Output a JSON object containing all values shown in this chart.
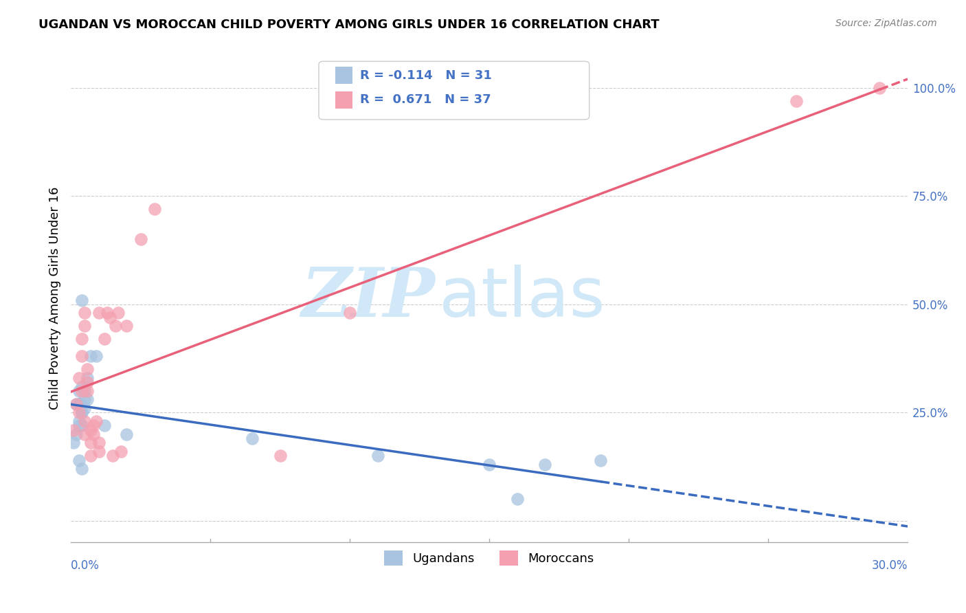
{
  "title": "UGANDAN VS MOROCCAN CHILD POVERTY AMONG GIRLS UNDER 16 CORRELATION CHART",
  "source": "Source: ZipAtlas.com",
  "ylabel": "Child Poverty Among Girls Under 16",
  "ytick_positions": [
    0.0,
    0.25,
    0.5,
    0.75,
    1.0
  ],
  "ytick_labels": [
    "",
    "25.0%",
    "50.0%",
    "75.0%",
    "100.0%"
  ],
  "legend_label1": "Ugandans",
  "legend_label2": "Moroccans",
  "R_ugandan": -0.114,
  "N_ugandan": 31,
  "R_moroccan": 0.671,
  "N_moroccan": 37,
  "ugandan_color": "#a8c4e0",
  "moroccan_color": "#f4a0b0",
  "ugandan_line_color": "#3a6bbf",
  "moroccan_line_color": "#e8607a",
  "watermark_zip": "ZIP",
  "watermark_atlas": "atlas",
  "watermark_color": "#d0e8f8",
  "ugandan_x": [
    0.001,
    0.003,
    0.002,
    0.003,
    0.004,
    0.003,
    0.004,
    0.005,
    0.004,
    0.002,
    0.004,
    0.003,
    0.005,
    0.005,
    0.006,
    0.003,
    0.007,
    0.003,
    0.004,
    0.009,
    0.006,
    0.003,
    0.004,
    0.012,
    0.02,
    0.065,
    0.11,
    0.15,
    0.16,
    0.17,
    0.19
  ],
  "ugandan_y": [
    0.18,
    0.22,
    0.2,
    0.27,
    0.25,
    0.23,
    0.31,
    0.26,
    0.25,
    0.27,
    0.22,
    0.3,
    0.3,
    0.28,
    0.33,
    0.27,
    0.38,
    0.27,
    0.51,
    0.38,
    0.28,
    0.14,
    0.12,
    0.22,
    0.2,
    0.19,
    0.15,
    0.13,
    0.05,
    0.13,
    0.14
  ],
  "moroccan_x": [
    0.001,
    0.002,
    0.003,
    0.003,
    0.004,
    0.004,
    0.004,
    0.005,
    0.005,
    0.005,
    0.005,
    0.006,
    0.006,
    0.006,
    0.007,
    0.007,
    0.007,
    0.008,
    0.008,
    0.009,
    0.01,
    0.01,
    0.01,
    0.012,
    0.013,
    0.014,
    0.015,
    0.016,
    0.017,
    0.018,
    0.02,
    0.025,
    0.03,
    0.075,
    0.1,
    0.26,
    0.29
  ],
  "moroccan_y": [
    0.21,
    0.27,
    0.25,
    0.33,
    0.3,
    0.38,
    0.42,
    0.2,
    0.23,
    0.45,
    0.48,
    0.3,
    0.35,
    0.32,
    0.15,
    0.18,
    0.21,
    0.2,
    0.22,
    0.23,
    0.16,
    0.18,
    0.48,
    0.42,
    0.48,
    0.47,
    0.15,
    0.45,
    0.48,
    0.16,
    0.45,
    0.65,
    0.72,
    0.15,
    0.48,
    0.97,
    1.0
  ],
  "xmin": 0.0,
  "xmax": 0.3,
  "ymin": -0.05,
  "ymax": 1.08
}
